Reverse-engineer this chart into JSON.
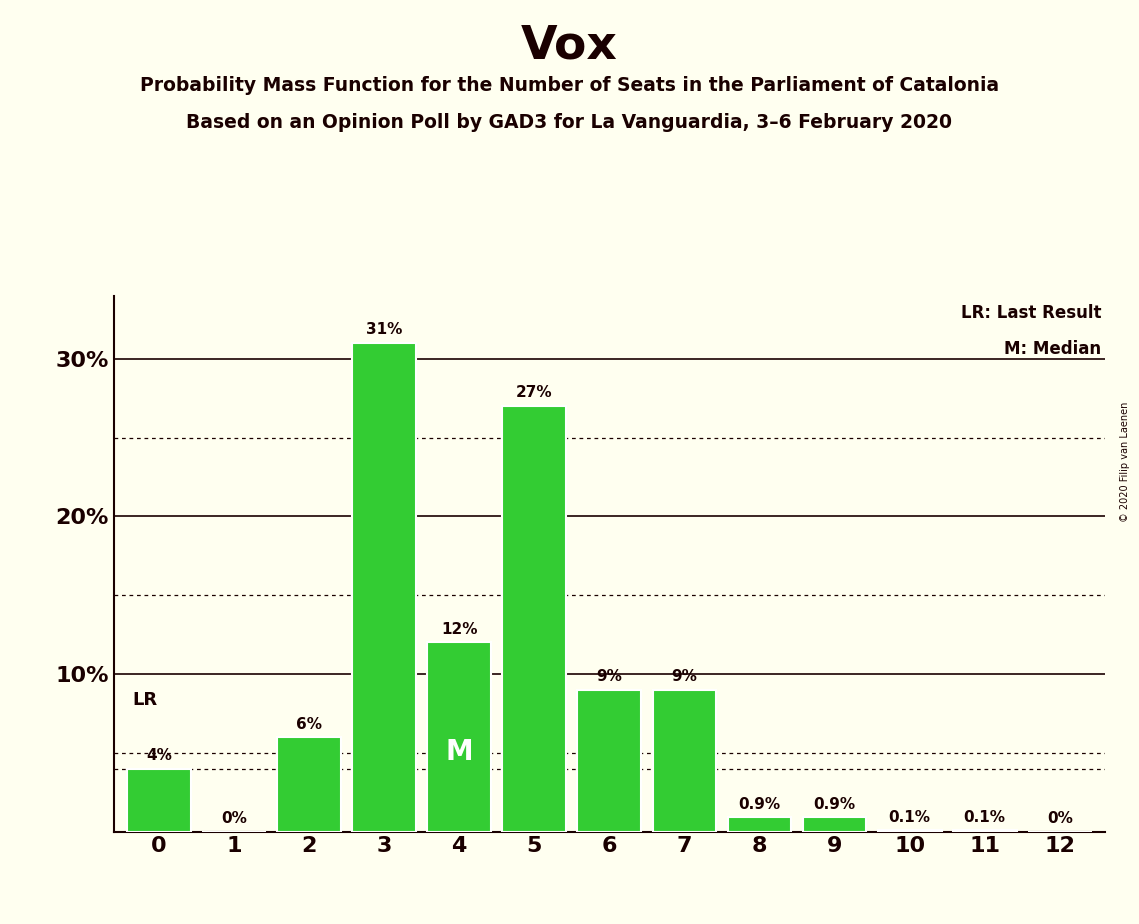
{
  "title": "Vox",
  "subtitle1": "Probability Mass Function for the Number of Seats in the Parliament of Catalonia",
  "subtitle2": "Based on an Opinion Poll by GAD3 for La Vanguardia, 3–6 February 2020",
  "copyright": "© 2020 Filip van Laenen",
  "categories": [
    0,
    1,
    2,
    3,
    4,
    5,
    6,
    7,
    8,
    9,
    10,
    11,
    12
  ],
  "values": [
    4,
    0,
    6,
    31,
    12,
    27,
    9,
    9,
    0.9,
    0.9,
    0.1,
    0.1,
    0
  ],
  "bar_labels": [
    "4%",
    "0%",
    "6%",
    "31%",
    "12%",
    "27%",
    "9%",
    "9%",
    "0.9%",
    "0.9%",
    "0.1%",
    "0.1%",
    "0%"
  ],
  "bar_color": "#33cc33",
  "background_color": "#fffff0",
  "text_color": "#1a0000",
  "ylim": [
    0,
    34
  ],
  "legend_lr_label": "LR: Last Result",
  "legend_m_label": "M: Median",
  "lr_value": 4,
  "lr_seat": 0,
  "median_seat": 4,
  "dotted_lines": [
    5,
    15,
    25
  ],
  "solid_lines": [
    10,
    20,
    30
  ]
}
